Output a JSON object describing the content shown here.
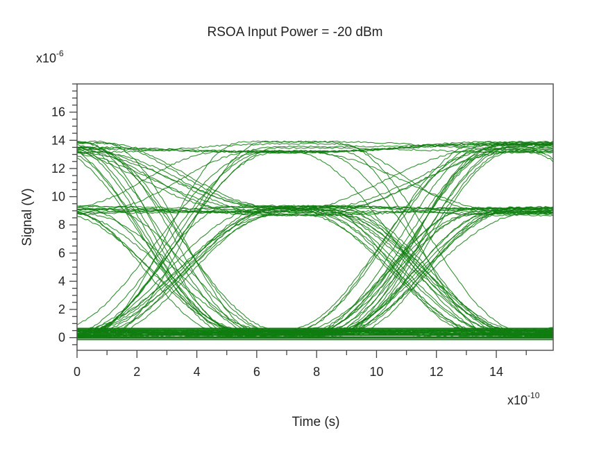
{
  "chart_data": {
    "type": "line",
    "subtype": "eye-diagram",
    "title": "RSOA Input Power = -20 dBm",
    "xlabel": "Time (s)",
    "ylabel": "Signal (V)",
    "x_multiplier": "x10",
    "x_multiplier_exp": "-10",
    "y_multiplier": "x10",
    "y_multiplier_exp": "-6",
    "xlim": [
      0,
      15.9
    ],
    "ylim": [
      -0.9,
      18.0
    ],
    "xticks": [
      0,
      2,
      4,
      6,
      8,
      10,
      12,
      14
    ],
    "yticks": [
      0,
      2,
      4,
      6,
      8,
      10,
      12,
      14,
      16
    ],
    "x_minor_step": 1,
    "y_minor_step": 0.5,
    "grid": false,
    "legend": null,
    "series_color": "#0f7d0f",
    "levels": [
      0.3,
      9.0,
      13.5
    ],
    "level_noise": [
      0.5,
      0.7,
      0.8
    ],
    "symbol_period": 8.0,
    "transition_centers": [
      3.0,
      11.0
    ],
    "eye_centers": [
      7.0,
      15.0
    ],
    "eye_openings": {
      "upper_eye": {
        "center_x": 7.0,
        "top": 13.0,
        "bottom": 9.5
      },
      "middle_eye": {
        "center_x": 7.0,
        "top": 8.5,
        "bottom": 0.8
      },
      "right_upper_eye": {
        "center_x": 15.0,
        "top": 13.0,
        "bottom": 9.5
      }
    },
    "trace_count": 80
  }
}
